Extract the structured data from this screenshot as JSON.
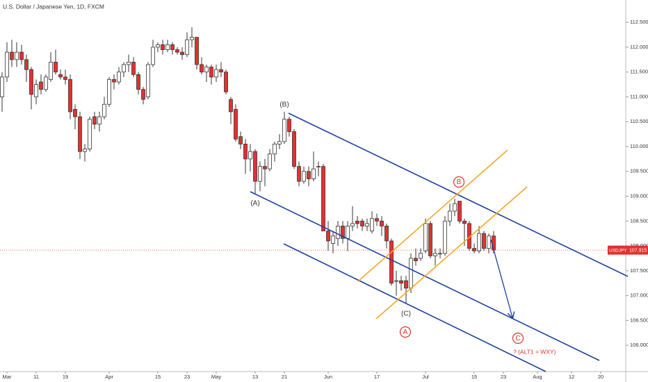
{
  "chart_data": {
    "type": "candlestick",
    "title": "U.S. Dollar / Japanese Yen, 1D, FXCM",
    "symbol": "USDJPY",
    "last_price": 107.915,
    "annotations": [
      "(A)",
      "(B)",
      "(C)",
      "A",
      "B",
      "C",
      "? (ALT1 = WXY)"
    ],
    "up_color": "#ffffff",
    "down_color": "#e0332e",
    "x": [
      "Feb 28",
      "Mar 1",
      "Mar 4",
      "Mar 5",
      "Mar 6",
      "Mar 7",
      "Mar 8",
      "Mar 11",
      "Mar 12",
      "Mar 13",
      "Mar 14",
      "Mar 15",
      "Mar 18",
      "Mar 19",
      "Mar 20",
      "Mar 21",
      "Mar 22",
      "Mar 25",
      "Mar 26",
      "Mar 27",
      "Mar 28",
      "Mar 29",
      "Apr 1",
      "Apr 2",
      "Apr 3",
      "Apr 4",
      "Apr 5",
      "Apr 8",
      "Apr 9",
      "Apr 10",
      "Apr 11",
      "Apr 12",
      "Apr 15",
      "Apr 16",
      "Apr 17",
      "Apr 18",
      "Apr 19",
      "Apr 22",
      "Apr 23",
      "Apr 24",
      "Apr 25",
      "Apr 26",
      "Apr 29",
      "Apr 30",
      "May 1",
      "May 2",
      "May 3",
      "May 6",
      "May 7",
      "May 8",
      "May 9",
      "May 10",
      "May 13",
      "May 14",
      "May 15",
      "May 16",
      "May 17",
      "May 20",
      "May 21",
      "May 22",
      "May 23",
      "May 24",
      "May 27",
      "May 28",
      "May 29",
      "May 30",
      "May 31",
      "Jun 3",
      "Jun 4",
      "Jun 5",
      "Jun 6",
      "Jun 7",
      "Jun 10",
      "Jun 11",
      "Jun 12",
      "Jun 13",
      "Jun 14",
      "Jun 17",
      "Jun 18",
      "Jun 19",
      "Jun 20",
      "Jun 21",
      "Jun 24",
      "Jun 25",
      "Jun 26",
      "Jun 27",
      "Jun 28",
      "Jul 1",
      "Jul 2",
      "Jul 3",
      "Jul 4",
      "Jul 5",
      "Jul 8",
      "Jul 9",
      "Jul 10",
      "Jul 11",
      "Jul 12",
      "Jul 15",
      "Jul 16",
      "Jul 17",
      "Jul 18",
      "Jul 19",
      "Jul 22",
      "Jul 23",
      "Jul 24",
      "Jul 25",
      "Jul 26",
      "Jul 29",
      "Jul 30",
      "Jul 31",
      "Aug 1",
      "Aug 2",
      "Aug 5",
      "Aug 6",
      "Aug 7",
      "Aug 8",
      "Aug 9",
      "Aug 12",
      "Aug 13",
      "Aug 14",
      "Aug 15",
      "Aug 16",
      "Aug 19",
      "Aug 20",
      "Aug 21",
      "Aug 22",
      "Aug 23",
      "Aug 26",
      "Aug 27"
    ],
    "open": [
      111.0,
      111.4,
      111.9,
      111.75,
      111.9,
      111.75,
      111.55,
      111.0,
      111.3,
      111.15,
      111.35,
      111.7,
      111.45,
      111.4,
      111.35,
      110.75,
      110.6,
      109.9,
      109.95,
      110.6,
      110.45,
      110.6,
      110.85,
      111.35,
      111.3,
      111.5,
      111.65,
      111.7,
      111.45,
      111.15,
      111.0,
      111.65,
      112.0,
      112.05,
      111.95,
      112.05,
      111.95,
      111.9,
      111.85,
      112.15,
      112.2,
      111.65,
      111.5,
      111.6,
      111.4,
      111.55,
      111.5,
      110.95,
      110.75,
      110.2,
      110.05,
      109.75,
      109.9,
      109.3,
      109.6,
      109.55,
      109.85,
      110.05,
      110.1,
      110.55,
      110.3,
      109.6,
      109.3,
      109.5,
      109.35,
      109.6,
      109.6,
      108.3,
      108.05,
      108.15,
      108.4,
      108.15,
      108.4,
      108.5,
      108.5,
      108.4,
      108.3,
      108.55,
      108.5,
      108.4,
      108.1,
      107.3,
      107.3,
      107.3,
      107.15,
      107.75,
      107.75,
      107.9,
      108.45,
      107.8,
      107.85,
      107.85,
      108.5,
      108.7,
      108.9,
      108.5,
      108.45,
      107.95,
      107.9,
      108.25,
      107.95,
      108.2,
      null,
      null,
      null,
      null,
      null,
      null,
      null,
      null,
      null,
      null,
      null,
      null,
      null,
      null,
      null,
      null,
      null,
      null,
      null,
      null,
      null,
      null,
      null,
      null,
      null,
      null,
      null
    ],
    "high": [
      111.5,
      112.1,
      112.15,
      112.1,
      112.05,
      111.85,
      111.6,
      111.35,
      111.45,
      111.45,
      111.9,
      111.95,
      111.55,
      111.55,
      111.45,
      110.85,
      110.7,
      110.05,
      110.6,
      110.7,
      110.7,
      111.0,
      111.4,
      111.45,
      111.6,
      111.7,
      111.85,
      111.8,
      111.5,
      111.2,
      111.7,
      112.15,
      112.1,
      112.15,
      112.15,
      112.1,
      112.0,
      112.0,
      112.3,
      112.4,
      112.2,
      111.8,
      111.65,
      111.65,
      111.65,
      111.7,
      111.55,
      111.0,
      110.85,
      110.3,
      110.15,
      110.05,
      109.95,
      109.7,
      109.75,
      109.95,
      110.1,
      110.25,
      110.7,
      110.6,
      110.35,
      109.7,
      109.6,
      109.6,
      109.9,
      109.7,
      109.65,
      108.5,
      108.3,
      108.5,
      108.5,
      108.5,
      108.8,
      108.6,
      108.55,
      108.55,
      108.7,
      108.65,
      108.6,
      108.45,
      108.15,
      107.5,
      107.4,
      107.4,
      107.85,
      107.95,
      107.95,
      108.55,
      108.5,
      107.95,
      107.95,
      108.6,
      108.85,
      108.95,
      108.9,
      108.55,
      108.5,
      108.05,
      108.4,
      108.3,
      108.25,
      108.3,
      null,
      null,
      null,
      null,
      null,
      null,
      null,
      null,
      null,
      null,
      null,
      null,
      null,
      null,
      null,
      null,
      null,
      null,
      null,
      null,
      null,
      null,
      null,
      null,
      null,
      null,
      null
    ],
    "low": [
      110.7,
      111.3,
      111.6,
      111.6,
      111.65,
      111.3,
      110.75,
      110.85,
      111.05,
      111.1,
      111.3,
      111.45,
      111.35,
      111.25,
      110.55,
      110.35,
      109.75,
      109.7,
      109.9,
      110.35,
      110.3,
      110.55,
      110.8,
      111.15,
      111.25,
      111.4,
      111.5,
      111.4,
      111.05,
      110.85,
      110.95,
      111.6,
      111.9,
      111.85,
      111.9,
      111.85,
      111.85,
      111.75,
      111.8,
      112.0,
      111.55,
      111.45,
      111.3,
      111.25,
      111.3,
      111.4,
      111.05,
      110.45,
      110.1,
      109.95,
      109.45,
      109.5,
      109.05,
      109.1,
      109.2,
      109.5,
      109.7,
      109.95,
      110.05,
      110.2,
      109.55,
      109.2,
      109.25,
      109.2,
      109.3,
      109.4,
      108.3,
      107.9,
      107.85,
      108.0,
      108.05,
      107.9,
      108.3,
      108.35,
      108.3,
      108.3,
      108.25,
      108.4,
      108.2,
      107.95,
      107.2,
      107.0,
      107.1,
      106.85,
      107.05,
      107.6,
      107.7,
      107.85,
      107.75,
      107.6,
      107.75,
      107.8,
      108.4,
      108.6,
      108.45,
      108.0,
      107.9,
      107.85,
      107.85,
      107.9,
      107.85,
      107.85,
      null,
      null,
      null,
      null,
      null,
      null,
      null,
      null,
      null,
      null,
      null,
      null,
      null,
      null,
      null,
      null,
      null,
      null,
      null,
      null,
      null,
      null,
      null,
      null,
      null,
      null,
      null
    ],
    "close": [
      111.4,
      111.9,
      111.75,
      111.9,
      111.75,
      111.55,
      111.05,
      111.25,
      111.15,
      111.4,
      111.7,
      111.5,
      111.4,
      111.35,
      110.7,
      110.6,
      109.9,
      109.95,
      110.55,
      110.45,
      110.6,
      110.85,
      111.35,
      111.3,
      111.5,
      111.65,
      111.7,
      111.45,
      111.15,
      110.95,
      111.65,
      112.0,
      112.05,
      111.95,
      112.05,
      111.95,
      111.9,
      111.85,
      112.15,
      112.2,
      111.65,
      111.5,
      111.6,
      111.4,
      111.55,
      111.5,
      111.1,
      110.7,
      110.15,
      110.05,
      109.75,
      109.9,
      109.3,
      109.6,
      109.55,
      109.85,
      110.05,
      110.1,
      110.55,
      110.3,
      109.6,
      109.3,
      109.5,
      109.35,
      109.55,
      109.6,
      108.3,
      108.1,
      108.2,
      108.4,
      108.15,
      108.4,
      108.45,
      108.45,
      108.4,
      108.45,
      108.55,
      108.5,
      108.4,
      108.1,
      107.25,
      107.3,
      107.25,
      107.15,
      107.75,
      107.7,
      107.85,
      108.45,
      107.8,
      107.85,
      107.85,
      108.5,
      108.7,
      108.85,
      108.5,
      108.45,
      107.95,
      107.9,
      108.25,
      107.95,
      108.2,
      107.915,
      null,
      null,
      null,
      null,
      null,
      null,
      null,
      null,
      null,
      null,
      null,
      null,
      null,
      null,
      null,
      null,
      null,
      null,
      null,
      null,
      null,
      null,
      null,
      null,
      null,
      null,
      null
    ],
    "xticks": [
      {
        "value": "Mar 1",
        "label": "Mar"
      },
      {
        "value": "Mar 11",
        "label": "11"
      },
      {
        "value": "Mar 19",
        "label": "19"
      },
      {
        "value": "Apr 1",
        "label": "Apr"
      },
      {
        "value": "Apr 15",
        "label": "15"
      },
      {
        "value": "Apr 23",
        "label": "23"
      },
      {
        "value": "May 1",
        "label": "May"
      },
      {
        "value": "May 13",
        "label": "13"
      },
      {
        "value": "May 21",
        "label": "21"
      },
      {
        "value": "Jun 3",
        "label": "Jun"
      },
      {
        "value": "Jun 17",
        "label": "17"
      },
      {
        "value": "Jul 1",
        "label": "Jul"
      },
      {
        "value": "Jul 15",
        "label": "15"
      },
      {
        "value": "Jul 23",
        "label": "23"
      },
      {
        "value": "Aug 1",
        "label": "Aug"
      },
      {
        "value": "Aug 12",
        "label": "12"
      },
      {
        "value": "Aug 20",
        "label": "20"
      }
    ],
    "ylim": [
      105.47,
      112.95
    ],
    "yticks": [
      {
        "value": 106,
        "label": "106.000"
      },
      {
        "value": 106.5,
        "label": "106.500"
      },
      {
        "value": 107,
        "label": "107.000"
      },
      {
        "value": 107.5,
        "label": "107.500"
      },
      {
        "value": 108,
        "label": "108.000"
      },
      {
        "value": 108.5,
        "label": "108.500"
      },
      {
        "value": 109,
        "label": "109.000"
      },
      {
        "value": 109.5,
        "label": "109.500"
      },
      {
        "value": 110,
        "label": "110.000"
      },
      {
        "value": 110.5,
        "label": "110.500"
      },
      {
        "value": 111,
        "label": "111.000"
      },
      {
        "value": 111.5,
        "label": "111.500"
      },
      {
        "value": 112,
        "label": "112.000"
      },
      {
        "value": 112.5,
        "label": "112.500"
      }
    ],
    "grid": false
  }
}
